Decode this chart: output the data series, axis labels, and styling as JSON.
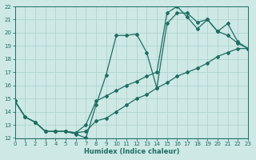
{
  "xlabel": "Humidex (Indice chaleur)",
  "xlim": [
    0,
    23
  ],
  "ylim": [
    12,
    22
  ],
  "xtick_vals": [
    0,
    1,
    2,
    3,
    4,
    5,
    6,
    7,
    8,
    9,
    10,
    11,
    12,
    13,
    14,
    15,
    16,
    17,
    18,
    19,
    20,
    21,
    22,
    23
  ],
  "ytick_vals": [
    12,
    13,
    14,
    15,
    16,
    17,
    18,
    19,
    20,
    21,
    22
  ],
  "bg_color": "#cde8e5",
  "grid_color": "#b0d4d0",
  "line_color": "#1e6e62",
  "line1_x": [
    0,
    1,
    2,
    3,
    4,
    5,
    6,
    7,
    8,
    9,
    10,
    11,
    12,
    13,
    14,
    15,
    16,
    17,
    18,
    19,
    20,
    21,
    22,
    23
  ],
  "line1_y": [
    14.8,
    13.6,
    13.2,
    12.5,
    12.5,
    12.5,
    12.4,
    12.5,
    13.3,
    13.5,
    14.0,
    14.5,
    15.0,
    15.3,
    15.8,
    16.2,
    16.7,
    17.0,
    17.3,
    17.7,
    18.2,
    18.5,
    18.8,
    18.8
  ],
  "line2_x": [
    0,
    1,
    2,
    3,
    4,
    5,
    6,
    7,
    8,
    9,
    10,
    11,
    12,
    13,
    14,
    15,
    16,
    17,
    18,
    19,
    20,
    21,
    22,
    23
  ],
  "line2_y": [
    14.8,
    13.6,
    13.2,
    12.5,
    12.5,
    12.5,
    12.3,
    12.0,
    14.5,
    16.8,
    19.8,
    19.8,
    19.9,
    18.5,
    15.8,
    20.7,
    21.5,
    21.5,
    20.8,
    21.0,
    20.1,
    19.8,
    19.2,
    18.8
  ],
  "line3_x": [
    0,
    1,
    2,
    3,
    4,
    5,
    6,
    7,
    8,
    9,
    10,
    11,
    12,
    13,
    14,
    15,
    16,
    17,
    18,
    19,
    20,
    21,
    22,
    23
  ],
  "line3_y": [
    14.8,
    13.6,
    13.2,
    12.5,
    12.5,
    12.5,
    12.4,
    13.0,
    14.8,
    15.2,
    15.6,
    16.0,
    16.3,
    16.7,
    17.0,
    21.5,
    22.0,
    21.2,
    20.3,
    21.0,
    20.1,
    20.7,
    19.3,
    18.8
  ],
  "markersize": 2.0,
  "linewidth": 0.9
}
